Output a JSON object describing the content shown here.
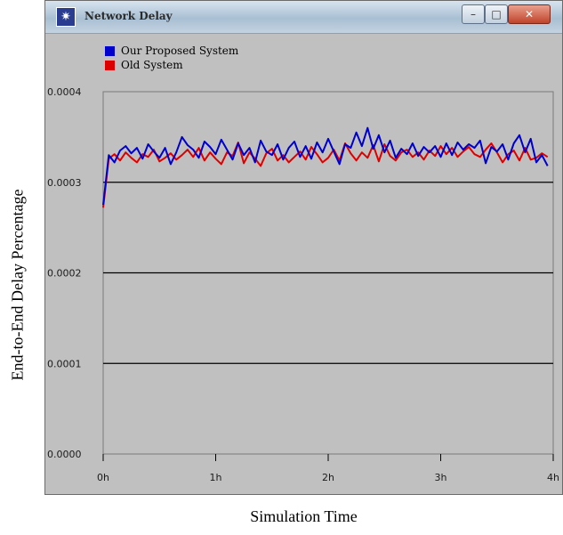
{
  "window": {
    "title": "Network Delay"
  },
  "chart_data": {
    "type": "line",
    "xlabel": "Simulation Time",
    "ylabel": "End-to-End Delay Percentage",
    "xlim": [
      0,
      4
    ],
    "ylim": [
      0,
      0.0004
    ],
    "xticks": [
      "0h",
      "1h",
      "2h",
      "3h",
      "4h"
    ],
    "yticks": [
      "0.0000",
      "0.0001",
      "0.0002",
      "0.0003",
      "0.0004"
    ],
    "grid": "horizontal",
    "legend_position": "top-left",
    "series": [
      {
        "name": "Our Proposed System",
        "color": "#0000cc",
        "x": [
          0.0,
          0.05,
          0.1,
          0.15,
          0.2,
          0.25,
          0.3,
          0.35,
          0.4,
          0.45,
          0.5,
          0.55,
          0.6,
          0.65,
          0.7,
          0.75,
          0.8,
          0.85,
          0.9,
          0.95,
          1.0,
          1.05,
          1.1,
          1.15,
          1.2,
          1.25,
          1.3,
          1.35,
          1.4,
          1.45,
          1.5,
          1.55,
          1.6,
          1.65,
          1.7,
          1.75,
          1.8,
          1.85,
          1.9,
          1.95,
          2.0,
          2.05,
          2.1,
          2.15,
          2.2,
          2.25,
          2.3,
          2.35,
          2.4,
          2.45,
          2.5,
          2.55,
          2.6,
          2.65,
          2.7,
          2.75,
          2.8,
          2.85,
          2.9,
          2.95,
          3.0,
          3.05,
          3.1,
          3.15,
          3.2,
          3.25,
          3.3,
          3.35,
          3.4,
          3.45,
          3.5,
          3.55,
          3.6,
          3.65,
          3.7,
          3.75,
          3.8,
          3.85,
          3.9,
          3.95
        ],
        "values": [
          0.000275,
          0.00033,
          0.000322,
          0.000335,
          0.00034,
          0.000332,
          0.000338,
          0.000326,
          0.000342,
          0.000334,
          0.000327,
          0.000338,
          0.00032,
          0.000333,
          0.00035,
          0.000341,
          0.000336,
          0.000327,
          0.000345,
          0.000339,
          0.000331,
          0.000347,
          0.000336,
          0.000325,
          0.000343,
          0.00033,
          0.000338,
          0.000322,
          0.000346,
          0.000334,
          0.00033,
          0.000342,
          0.000325,
          0.000338,
          0.000345,
          0.000328,
          0.00034,
          0.000326,
          0.000344,
          0.000333,
          0.000348,
          0.000334,
          0.00032,
          0.000342,
          0.000338,
          0.000355,
          0.00034,
          0.00036,
          0.000337,
          0.000352,
          0.000333,
          0.000346,
          0.000327,
          0.000337,
          0.000331,
          0.000343,
          0.000329,
          0.000339,
          0.000333,
          0.00034,
          0.000328,
          0.000343,
          0.00033,
          0.000344,
          0.000336,
          0.000342,
          0.000338,
          0.000346,
          0.000321,
          0.000339,
          0.000334,
          0.000342,
          0.000325,
          0.000343,
          0.000352,
          0.000333,
          0.000348,
          0.000322,
          0.00033,
          0.000318
        ]
      },
      {
        "name": "Old System",
        "color": "#dd0000",
        "x": [
          0.0,
          0.05,
          0.1,
          0.15,
          0.2,
          0.25,
          0.3,
          0.35,
          0.4,
          0.45,
          0.5,
          0.55,
          0.6,
          0.65,
          0.7,
          0.75,
          0.8,
          0.85,
          0.9,
          0.95,
          1.0,
          1.05,
          1.1,
          1.15,
          1.2,
          1.25,
          1.3,
          1.35,
          1.4,
          1.45,
          1.5,
          1.55,
          1.6,
          1.65,
          1.7,
          1.75,
          1.8,
          1.85,
          1.9,
          1.95,
          2.0,
          2.05,
          2.1,
          2.15,
          2.2,
          2.25,
          2.3,
          2.35,
          2.4,
          2.45,
          2.5,
          2.55,
          2.6,
          2.65,
          2.7,
          2.75,
          2.8,
          2.85,
          2.9,
          2.95,
          3.0,
          3.05,
          3.1,
          3.15,
          3.2,
          3.25,
          3.3,
          3.35,
          3.4,
          3.45,
          3.5,
          3.55,
          3.6,
          3.65,
          3.7,
          3.75,
          3.8,
          3.85,
          3.9,
          3.95
        ],
        "values": [
          0.000272,
          0.000326,
          0.000331,
          0.000324,
          0.000333,
          0.000327,
          0.000322,
          0.000331,
          0.000328,
          0.000336,
          0.000323,
          0.000327,
          0.000332,
          0.000325,
          0.00033,
          0.000336,
          0.000328,
          0.000338,
          0.000324,
          0.000333,
          0.000326,
          0.00032,
          0.000333,
          0.000329,
          0.000344,
          0.000321,
          0.000333,
          0.000326,
          0.000318,
          0.000332,
          0.000337,
          0.000324,
          0.00033,
          0.000322,
          0.000328,
          0.000334,
          0.000325,
          0.000339,
          0.000331,
          0.000322,
          0.000327,
          0.000336,
          0.000324,
          0.000343,
          0.000332,
          0.000324,
          0.000333,
          0.000327,
          0.000341,
          0.000323,
          0.000342,
          0.000329,
          0.000324,
          0.000333,
          0.000336,
          0.000328,
          0.000333,
          0.000325,
          0.000335,
          0.000329,
          0.00034,
          0.000331,
          0.000338,
          0.000328,
          0.000334,
          0.000339,
          0.000331,
          0.000328,
          0.000336,
          0.000343,
          0.000333,
          0.000322,
          0.000331,
          0.000335,
          0.000324,
          0.000338,
          0.000325,
          0.000327,
          0.000332,
          0.000328
        ]
      }
    ]
  }
}
